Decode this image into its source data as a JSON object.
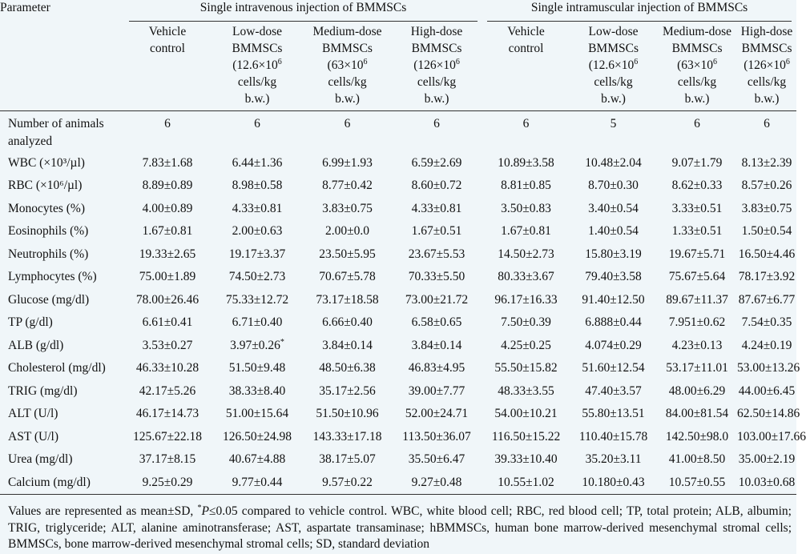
{
  "header": {
    "parameter": "Parameter",
    "group_iv": "Single intravenous injection of BMMSCs",
    "group_im": "Single intramuscular injection of BMMSCs",
    "columns": [
      {
        "l1": "Vehicle",
        "l2": "control",
        "l3": "",
        "l4": "",
        "l5": ""
      },
      {
        "l1": "Low-dose",
        "l2": "BMMSCs",
        "l3": "(12.6×10",
        "sup": "6",
        "l4": "cells/kg",
        "l5": "b.w.)"
      },
      {
        "l1": "Medium-dose",
        "l2": "BMMSCs",
        "l3": "(63×10",
        "sup": "6",
        "l4": "cells/kg",
        "l5": "b.w.)"
      },
      {
        "l1": "High-dose",
        "l2": "BMMSCs",
        "l3": "(126×10",
        "sup": "6",
        "l4": "cells/kg",
        "l5": "b.w.)"
      },
      {
        "l1": "Vehicle",
        "l2": "control",
        "l3": "",
        "l4": "",
        "l5": ""
      },
      {
        "l1": "Low-dose",
        "l2": "BMMSCs",
        "l3": "(12.6×10",
        "sup": "6",
        "l4": "cells/kg",
        "l5": "b.w.)"
      },
      {
        "l1": "Medium-dose",
        "l2": "BMMSCs",
        "l3": "(63×10",
        "sup": "6",
        "l4": "cells/kg",
        "l5": "b.w.)"
      },
      {
        "l1": "High-dose",
        "l2": "BMMSCs",
        "l3": "(126×10",
        "sup": "6",
        "l4": "cells/kg",
        "l5": "b.w.)"
      }
    ]
  },
  "rows": [
    {
      "label": "Number of animals analyzed",
      "values": [
        "6",
        "6",
        "6",
        "6",
        "6",
        "5",
        "6",
        "6"
      ]
    },
    {
      "label": "WBC (×10³/µl)",
      "values": [
        "7.83±1.68",
        "6.44±1.36",
        "6.99±1.93",
        "6.59±2.69",
        "10.89±3.58",
        "10.48±2.04",
        "9.07±1.79",
        "8.13±2.39"
      ]
    },
    {
      "label": "RBC (×10⁶/µl)",
      "values": [
        "8.89±0.89",
        "8.98±0.58",
        "8.77±0.42",
        "8.60±0.72",
        "8.81±0.85",
        "8.70±0.30",
        "8.62±0.33",
        "8.57±0.26"
      ]
    },
    {
      "label": "Monocytes (%)",
      "values": [
        "4.00±0.89",
        "4.33±0.81",
        "3.83±0.75",
        "4.33±0.81",
        "3.50±0.83",
        "3.40±0.54",
        "3.33±0.51",
        "3.83±0.75"
      ]
    },
    {
      "label": "Eosinophils (%)",
      "values": [
        "1.67±0.81",
        "2.00±0.63",
        "2.00±0.0",
        "1.67±0.51",
        "1.67±0.81",
        "1.40±0.54",
        "1.33±0.51",
        "1.50±0.54"
      ]
    },
    {
      "label": "Neutrophils (%)",
      "values": [
        "19.33±2.65",
        "19.17±3.37",
        "23.50±5.95",
        "23.67±5.53",
        "14.50±2.73",
        "15.80±3.19",
        "19.67±5.71",
        "16.50±4.46"
      ]
    },
    {
      "label": "Lymphocytes (%)",
      "values": [
        "75.00±1.89",
        "74.50±2.73",
        "70.67±5.78",
        "70.33±5.50",
        "80.33±3.67",
        "79.40±3.58",
        "75.67±5.64",
        "78.17±3.92"
      ]
    },
    {
      "label": "Glucose (mg/dl)",
      "values": [
        "78.00±26.46",
        "75.33±12.72",
        "73.17±18.58",
        "73.00±21.72",
        "96.17±16.33",
        "91.40±12.50",
        "89.67±11.37",
        "87.67±6.77"
      ]
    },
    {
      "label": "TP (g/dl)",
      "values": [
        "6.61±0.41",
        "6.71±0.40",
        "6.66±0.40",
        "6.58±0.65",
        "7.50±0.39",
        "6.888±0.44",
        "7.951±0.62",
        "7.54±0.35"
      ]
    },
    {
      "label": "ALB (g/dl)",
      "values": [
        "3.53±0.27",
        "3.97±0.26*",
        "3.84±0.14",
        "3.84±0.14",
        "4.25±0.25",
        "4.074±0.29",
        "4.23±0.13",
        "4.24±0.19"
      ]
    },
    {
      "label": "Cholesterol (mg/dl)",
      "values": [
        "46.33±10.28",
        "51.50±9.48",
        "48.50±6.38",
        "46.83±4.95",
        "55.50±15.82",
        "51.60±12.54",
        "53.17±11.01",
        "53.00±13.26"
      ]
    },
    {
      "label": "TRIG (mg/dl)",
      "values": [
        "42.17±5.26",
        "38.33±8.40",
        "35.17±2.56",
        "39.00±7.77",
        "48.33±3.55",
        "47.40±3.57",
        "48.00±6.29",
        "44.00±6.45"
      ]
    },
    {
      "label": "ALT (U/l)",
      "values": [
        "46.17±14.73",
        "51.00±15.64",
        "51.50±10.96",
        "52.00±24.71",
        "54.00±10.21",
        "55.80±13.51",
        "84.00±81.54",
        "62.50±14.86"
      ]
    },
    {
      "label": "AST (U/l)",
      "values": [
        "125.67±22.18",
        "126.50±24.98",
        "143.33±17.18",
        "113.50±36.07",
        "116.50±15.22",
        "110.40±15.78",
        "142.50±98.0",
        "103.00±17.66"
      ]
    },
    {
      "label": "Urea (mg/dl)",
      "values": [
        "37.17±8.15",
        "40.67±4.88",
        "38.17±5.07",
        "35.50±6.47",
        "39.33±10.40",
        "35.20±3.11",
        "41.00±8.50",
        "35.00±2.19"
      ]
    },
    {
      "label": "Calcium (mg/dl)",
      "values": [
        "9.25±0.29",
        "9.77±0.44",
        "9.57±0.22",
        "9.27±0.48",
        "10.55±1.02",
        "10.180±0.43",
        "10.57±0.55",
        "10.03±0.68"
      ]
    }
  ],
  "footnote": {
    "part1": "Values are represented as mean±SD, ",
    "sup": "*",
    "p": "P",
    "part2": "≤0.05 compared to vehicle control. WBC, white blood cell; RBC, red blood cell; TP, total protein; ALB, albumin; TRIG, triglyceride; ALT, alanine aminotransferase; AST, aspartate transaminase; hBMMSCs, human bone marrow-derived mesenchymal stromal cells; BMMSCs, bone marrow-derived mesenchymal stromal cells; SD, standard deviation"
  }
}
